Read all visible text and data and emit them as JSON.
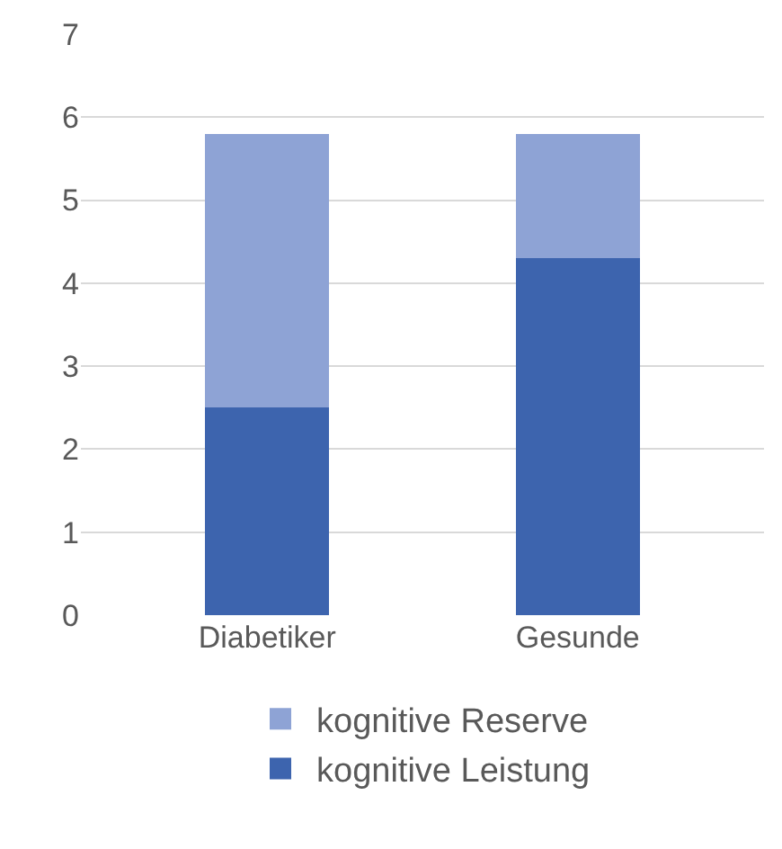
{
  "chart_data": {
    "type": "bar",
    "stacked": true,
    "categories": [
      "Diabetiker",
      "Gesunde"
    ],
    "series": [
      {
        "name": "kognitive Leistung",
        "color": "#3d64ae",
        "values": [
          2.5,
          4.3
        ]
      },
      {
        "name": "kognitive Reserve",
        "color": "#8ea3d5",
        "values": [
          3.3,
          1.5
        ]
      }
    ],
    "ylim": [
      0,
      7
    ],
    "yticks": [
      0,
      1,
      2,
      3,
      4,
      5,
      6,
      7
    ],
    "grid": "y",
    "legend": "bottom"
  }
}
